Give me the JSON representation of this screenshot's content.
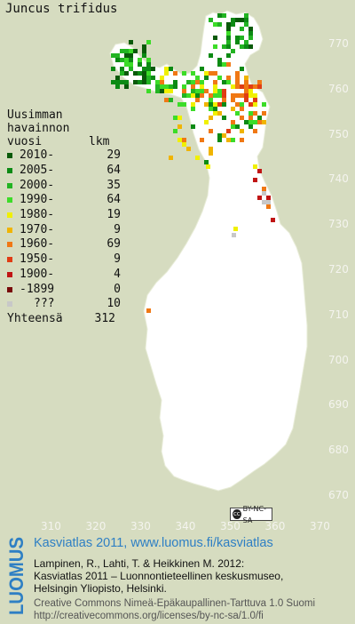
{
  "title": "Juncus trifidus",
  "legend": {
    "heading": [
      "Uusimman",
      "havainnon",
      "vuosi"
    ],
    "count_header": "lkm",
    "rows": [
      {
        "label": "2010-",
        "count": "29",
        "color": "#0a5a0a"
      },
      {
        "label": "2005-",
        "count": "64",
        "color": "#0c8a14"
      },
      {
        "label": "2000-",
        "count": "35",
        "color": "#22b422"
      },
      {
        "label": "1990-",
        "count": "64",
        "color": "#3cdc28"
      },
      {
        "label": "1980-",
        "count": "19",
        "color": "#f0f000"
      },
      {
        "label": "1970-",
        "count": "9",
        "color": "#f0b400"
      },
      {
        "label": "1960-",
        "count": "69",
        "color": "#f07814"
      },
      {
        "label": "1950-",
        "count": "9",
        "color": "#e03c14"
      },
      {
        "label": "1900-",
        "count": "4",
        "color": "#c01414"
      },
      {
        "label": "-1899",
        "count": "0",
        "color": "#780a0a"
      },
      {
        "label": "???",
        "count": "10",
        "color": "#c8c8c8"
      }
    ],
    "total_label": "Yhteensä",
    "total_count": "312"
  },
  "map": {
    "land_color": "#ffffff",
    "background_color": "#d6dcc0",
    "y_ticks": [
      "770",
      "760",
      "750",
      "740",
      "730",
      "720",
      "710",
      "700",
      "690",
      "680",
      "670"
    ],
    "x_ticks": [
      "310",
      "320",
      "330",
      "340",
      "350",
      "360",
      "370"
    ]
  },
  "license_badge": "BY-NC-SA",
  "footer": {
    "logo": "LUOMUS",
    "title": "Kasviatlas 2011, www.luomus.fi/kasviatlas",
    "citation": [
      "Lampinen, R., Lahti, T. & Heikkinen M. 2012:",
      "Kasviatlas 2011 – Luonnontieteellinen keskusmuseo,",
      "Helsingin Yliopisto, Helsinki."
    ],
    "license": [
      "Creative Commons Nimeä-Epäkaupallinen-Tarttuva 1.0 Suomi",
      "http://creativecommons.org/licenses/by-nc-sa/1.0/fi"
    ]
  }
}
